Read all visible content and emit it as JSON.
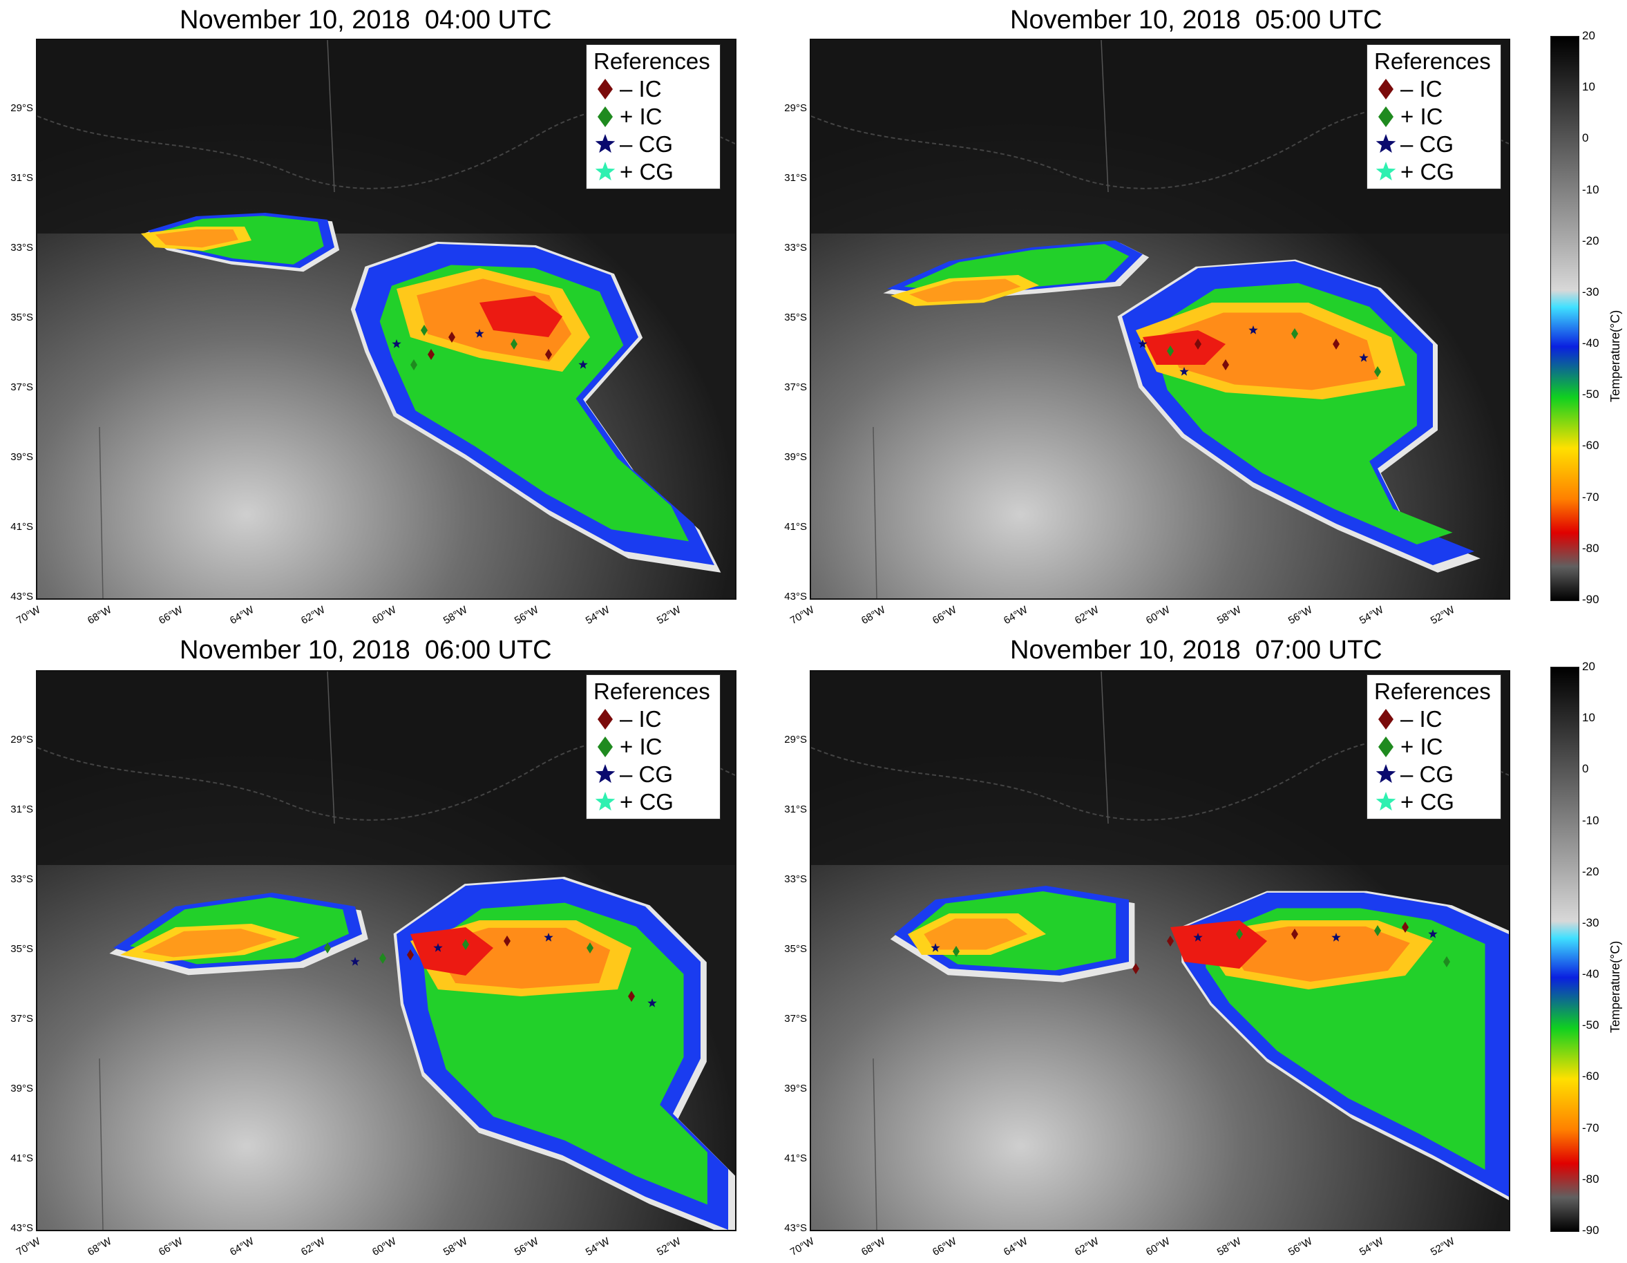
{
  "panels": [
    {
      "title": "November 10, 2018  04:00 UTC"
    },
    {
      "title": "November 10, 2018  05:00 UTC"
    },
    {
      "title": "November 10, 2018  06:00 UTC"
    },
    {
      "title": "November 10, 2018  07:00 UTC"
    }
  ],
  "legend": {
    "title": "References",
    "items": [
      {
        "label": "– IC",
        "marker": "diamond",
        "color": "#7a0a0a"
      },
      {
        "label": "+ IC",
        "marker": "diamond",
        "color": "#1f8a1f"
      },
      {
        "label": "– CG",
        "marker": "star",
        "color": "#0a0a6e"
      },
      {
        "label": "+ CG",
        "marker": "star",
        "color": "#2ef0b0"
      }
    ]
  },
  "axes": {
    "lat_labels": [
      "29°S",
      "31°S",
      "33°S",
      "35°S",
      "37°S",
      "39°S",
      "41°S",
      "43°S"
    ],
    "lon_labels": [
      "70°W",
      "68°W",
      "66°W",
      "64°W",
      "62°W",
      "60°W",
      "58°W",
      "56°W",
      "54°W",
      "52°W"
    ]
  },
  "colorbar": {
    "label": "Temperature(°C)",
    "ticks": [
      "20",
      "10",
      "0",
      "-10",
      "-20",
      "-30",
      "-40",
      "-50",
      "-60",
      "-70",
      "-80",
      "-90"
    ],
    "stops": [
      "#000000",
      "#2a2a2a",
      "#555555",
      "#808080",
      "#aaaaaa",
      "#d8d8d8",
      "#40e0ff",
      "#0a20e0",
      "#10d020",
      "#ffe000",
      "#ff8000",
      "#e00000",
      "#606060",
      "#000000"
    ]
  }
}
